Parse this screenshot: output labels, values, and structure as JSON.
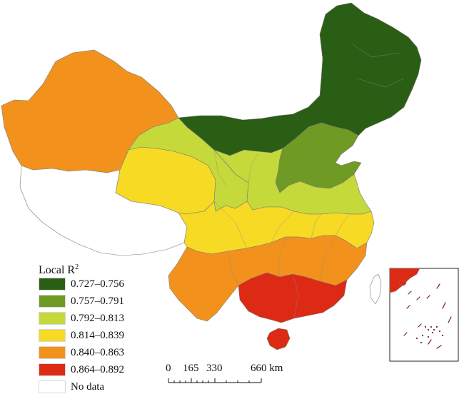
{
  "legend": {
    "title": "Local R",
    "title_sup": "2",
    "items": [
      {
        "label": "0.727–0.756",
        "color": "#2a5e14"
      },
      {
        "label": "0.757–0.791",
        "color": "#6f9a23"
      },
      {
        "label": "0.792–0.813",
        "color": "#c5d93a"
      },
      {
        "label": "0.814–0.839",
        "color": "#f6da24"
      },
      {
        "label": "0.840–0.863",
        "color": "#f2921d"
      },
      {
        "label": "0.864–0.892",
        "color": "#dd2a14"
      },
      {
        "label": "No data",
        "color": "#ffffff"
      }
    ]
  },
  "scale": {
    "ticks": [
      "0",
      "165",
      "330",
      "660 km"
    ]
  }
}
